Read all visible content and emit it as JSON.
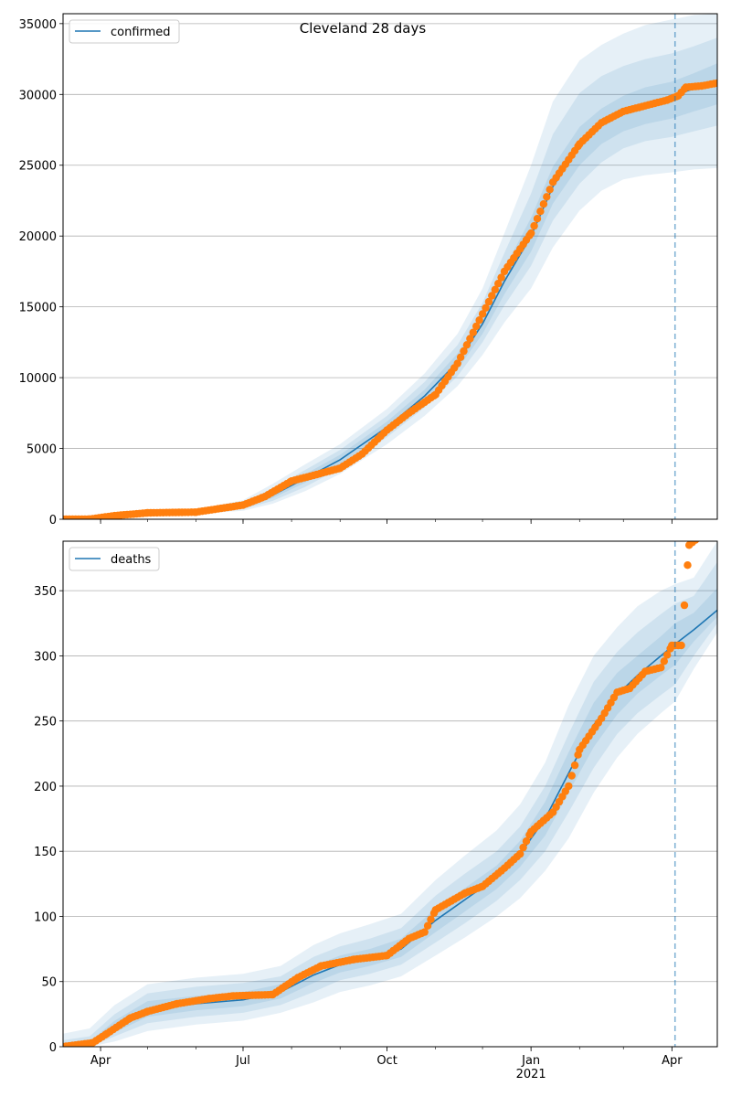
{
  "chart_data": [
    {
      "type": "line",
      "title": "Cleveland 28 days",
      "xlabel": "",
      "ylabel": "",
      "legend": {
        "placement": "top-left",
        "entries": [
          "confirmed"
        ]
      },
      "grid": "horizontal",
      "x_range": [
        "2020-03-08",
        "2021-04-30"
      ],
      "ylim": [
        0,
        35700
      ],
      "y_ticks": [
        0,
        5000,
        10000,
        15000,
        20000,
        25000,
        30000,
        35000
      ],
      "x_ticks": [
        {
          "date": "2020-04-01",
          "label": "Apr"
        },
        {
          "date": "2020-07-01",
          "label": "Jul"
        },
        {
          "date": "2020-10-01",
          "label": "Oct"
        },
        {
          "date": "2021-01-01",
          "label": "Jan",
          "sublabel": "2021"
        },
        {
          "date": "2021-04-01",
          "label": "Apr"
        }
      ],
      "forecast_start": "2021-04-03",
      "series": [
        {
          "name": "confirmed",
          "kind": "model-median",
          "color": "#1f77b4",
          "x": [
            "2020-03-08",
            "2020-04-01",
            "2020-05-01",
            "2020-06-01",
            "2020-07-01",
            "2020-07-20",
            "2020-08-10",
            "2020-09-01",
            "2020-10-01",
            "2020-10-25",
            "2020-11-15",
            "2020-12-01",
            "2020-12-15",
            "2021-01-01",
            "2021-01-15",
            "2021-02-01",
            "2021-02-15",
            "2021-03-01",
            "2021-03-15",
            "2021-04-01",
            "2021-04-15",
            "2021-04-30"
          ],
          "y": [
            0,
            150,
            450,
            500,
            900,
            1700,
            2900,
            4200,
            6500,
            8700,
            11100,
            13800,
            16800,
            20000,
            23500,
            26300,
            27800,
            28700,
            29300,
            29900,
            30400,
            31000
          ]
        },
        {
          "name": "observed",
          "kind": "observed-points",
          "color": "#ff7f0e",
          "x": [
            "2020-03-08",
            "2020-03-25",
            "2020-04-10",
            "2020-05-01",
            "2020-06-01",
            "2020-07-01",
            "2020-07-15",
            "2020-08-01",
            "2020-08-15",
            "2020-09-01",
            "2020-09-15",
            "2020-10-01",
            "2020-10-15",
            "2020-11-01",
            "2020-11-15",
            "2020-12-01",
            "2020-12-15",
            "2021-01-01",
            "2021-01-15",
            "2021-02-01",
            "2021-02-15",
            "2021-03-01",
            "2021-03-15",
            "2021-03-29",
            "2021-04-05",
            "2021-04-10",
            "2021-04-20",
            "2021-04-30"
          ],
          "y": [
            0,
            10,
            250,
            450,
            500,
            1000,
            1600,
            2700,
            3100,
            3600,
            4600,
            6300,
            7500,
            8800,
            11000,
            14500,
            17500,
            20200,
            23800,
            26500,
            28000,
            28800,
            29200,
            29600,
            29900,
            30500,
            30600,
            30800
          ]
        }
      ],
      "bands": {
        "color": "#1f77b4",
        "note": "nested uncertainty intervals around the model median",
        "x": [
          "2020-03-08",
          "2020-04-01",
          "2020-05-01",
          "2020-06-01",
          "2020-07-01",
          "2020-07-20",
          "2020-08-10",
          "2020-09-01",
          "2020-10-01",
          "2020-10-25",
          "2020-11-15",
          "2020-12-01",
          "2020-12-15",
          "2021-01-01",
          "2021-01-15",
          "2021-02-01",
          "2021-02-15",
          "2021-03-01",
          "2021-03-15",
          "2021-04-01",
          "2021-04-15",
          "2021-04-30"
        ],
        "levels": [
          {
            "lower": [
              0,
              60,
              300,
              380,
              600,
              1100,
              2000,
              3200,
              5300,
              7300,
              9400,
              11600,
              13900,
              16300,
              19200,
              21800,
              23200,
              24000,
              24300,
              24500,
              24700,
              24800
            ],
            "upper": [
              0,
              300,
              650,
              700,
              1350,
              2500,
              3900,
              5300,
              7800,
              10300,
              13100,
              16300,
              20200,
              25000,
              29500,
              32400,
              33500,
              34300,
              34900,
              35300,
              35600,
              35700
            ]
          },
          {
            "lower": [
              0,
              90,
              360,
              430,
              720,
              1300,
              2300,
              3600,
              5800,
              7900,
              10100,
              12500,
              15100,
              17900,
              21100,
              23700,
              25200,
              26200,
              26700,
              27000,
              27400,
              27800
            ],
            "upper": [
              0,
              240,
              580,
              620,
              1150,
              2200,
              3500,
              4900,
              7300,
              9700,
              12300,
              15300,
              18800,
              23000,
              27200,
              30100,
              31300,
              32000,
              32500,
              32900,
              33400,
              34000
            ]
          },
          {
            "lower": [
              0,
              120,
              410,
              470,
              820,
              1500,
              2600,
              3900,
              6150,
              8300,
              10600,
              13100,
              15900,
              18900,
              22300,
              25000,
              26500,
              27400,
              27900,
              28300,
              28800,
              29300
            ],
            "upper": [
              0,
              190,
              500,
              550,
              1000,
              1950,
              3200,
              4550,
              6900,
              9150,
              11700,
              14500,
              17700,
              21300,
              24900,
              27700,
              29000,
              29900,
              30500,
              30900,
              31500,
              32200
            ]
          }
        ]
      }
    },
    {
      "type": "line",
      "title": "",
      "xlabel": "",
      "ylabel": "",
      "legend": {
        "placement": "top-left",
        "entries": [
          "deaths"
        ]
      },
      "grid": "horizontal",
      "x_range": [
        "2020-03-08",
        "2021-04-30"
      ],
      "ylim": [
        0,
        388
      ],
      "y_ticks": [
        0,
        50,
        100,
        150,
        200,
        250,
        300,
        350
      ],
      "x_ticks": [
        {
          "date": "2020-04-01",
          "label": "Apr"
        },
        {
          "date": "2020-07-01",
          "label": "Jul"
        },
        {
          "date": "2020-10-01",
          "label": "Oct"
        },
        {
          "date": "2021-01-01",
          "label": "Jan",
          "sublabel": "2021"
        },
        {
          "date": "2021-04-01",
          "label": "Apr"
        }
      ],
      "forecast_start": "2021-04-03",
      "series": [
        {
          "name": "deaths",
          "kind": "model-median",
          "color": "#1f77b4",
          "x": [
            "2020-03-08",
            "2020-03-25",
            "2020-04-10",
            "2020-05-01",
            "2020-06-01",
            "2020-07-01",
            "2020-07-25",
            "2020-08-15",
            "2020-09-01",
            "2020-09-20",
            "2020-10-10",
            "2020-11-01",
            "2020-11-20",
            "2020-12-10",
            "2020-12-25",
            "2021-01-10",
            "2021-01-25",
            "2021-02-10",
            "2021-02-25",
            "2021-03-10",
            "2021-03-25",
            "2021-04-03",
            "2021-04-15",
            "2021-04-30"
          ],
          "y": [
            0,
            2,
            15,
            29,
            33,
            36,
            42,
            55,
            63,
            68,
            75,
            97,
            113,
            130,
            148,
            175,
            210,
            247,
            270,
            285,
            300,
            309,
            320,
            335
          ]
        },
        {
          "name": "observed",
          "kind": "observed-points",
          "color": "#ff7f0e",
          "x": [
            "2020-03-08",
            "2020-03-27",
            "2020-04-05",
            "2020-04-20",
            "2020-05-01",
            "2020-05-20",
            "2020-06-10",
            "2020-06-25",
            "2020-07-20",
            "2020-08-05",
            "2020-08-20",
            "2020-09-10",
            "2020-10-01",
            "2020-10-15",
            "2020-10-25",
            "2020-11-01",
            "2020-11-20",
            "2020-12-01",
            "2020-12-15",
            "2020-12-25",
            "2021-01-01",
            "2021-01-15",
            "2021-01-25",
            "2021-02-01",
            "2021-02-15",
            "2021-02-25",
            "2021-03-05",
            "2021-03-15",
            "2021-03-25",
            "2021-04-01",
            "2021-04-07",
            "2021-04-12",
            "2021-04-17"
          ],
          "y": [
            0,
            3,
            10,
            22,
            27,
            33,
            37,
            39,
            40,
            53,
            62,
            67,
            70,
            83,
            88,
            105,
            118,
            123,
            137,
            148,
            165,
            180,
            200,
            228,
            252,
            272,
            275,
            288,
            291,
            308,
            308,
            385,
            390
          ]
        }
      ],
      "bands": {
        "color": "#1f77b4",
        "note": "nested uncertainty intervals around the model median",
        "x": [
          "2020-03-08",
          "2020-03-25",
          "2020-04-10",
          "2020-05-01",
          "2020-06-01",
          "2020-07-01",
          "2020-07-25",
          "2020-08-15",
          "2020-09-01",
          "2020-09-20",
          "2020-10-10",
          "2020-11-01",
          "2020-11-20",
          "2020-12-10",
          "2020-12-25",
          "2021-01-10",
          "2021-01-25",
          "2021-02-10",
          "2021-02-25",
          "2021-03-10",
          "2021-03-25",
          "2021-04-03",
          "2021-04-15",
          "2021-04-30"
        ],
        "levels": [
          {
            "lower": [
              0,
              0,
              4,
              12,
              17,
              20,
              26,
              34,
              42,
              47,
              54,
              70,
              84,
              100,
              114,
              135,
              160,
              195,
              222,
              240,
              256,
              265,
              290,
              318
            ],
            "upper": [
              10,
              14,
              32,
              48,
              53,
              56,
              62,
              78,
              87,
              94,
              102,
              128,
              147,
              166,
              186,
              218,
              262,
              300,
              322,
              338,
              350,
              355,
              360,
              388
            ]
          },
          {
            "lower": [
              0,
              0,
              8,
              18,
              23,
              26,
              32,
              42,
              51,
              56,
              63,
              80,
              95,
              112,
              128,
              150,
              180,
              214,
              240,
              256,
              270,
              278,
              300,
              325
            ],
            "upper": [
              5,
              8,
              25,
              41,
              46,
              49,
              54,
              69,
              77,
              83,
              91,
              116,
              133,
              150,
              169,
              200,
              240,
              280,
              303,
              318,
              332,
              340,
              346,
              372
            ]
          },
          {
            "lower": [
              0,
              1,
              11,
              23,
              28,
              31,
              37,
              49,
              57,
              62,
              69,
              88,
              104,
              121,
              138,
              162,
              195,
              230,
              255,
              271,
              285,
              293,
              311,
              330
            ],
            "upper": [
              2,
              4,
              20,
              35,
              39,
              42,
              48,
              62,
              70,
              75,
              83,
              106,
              122,
              139,
              158,
              188,
              226,
              264,
              287,
              300,
              315,
              325,
              333,
              352
            ]
          }
        ]
      }
    }
  ]
}
